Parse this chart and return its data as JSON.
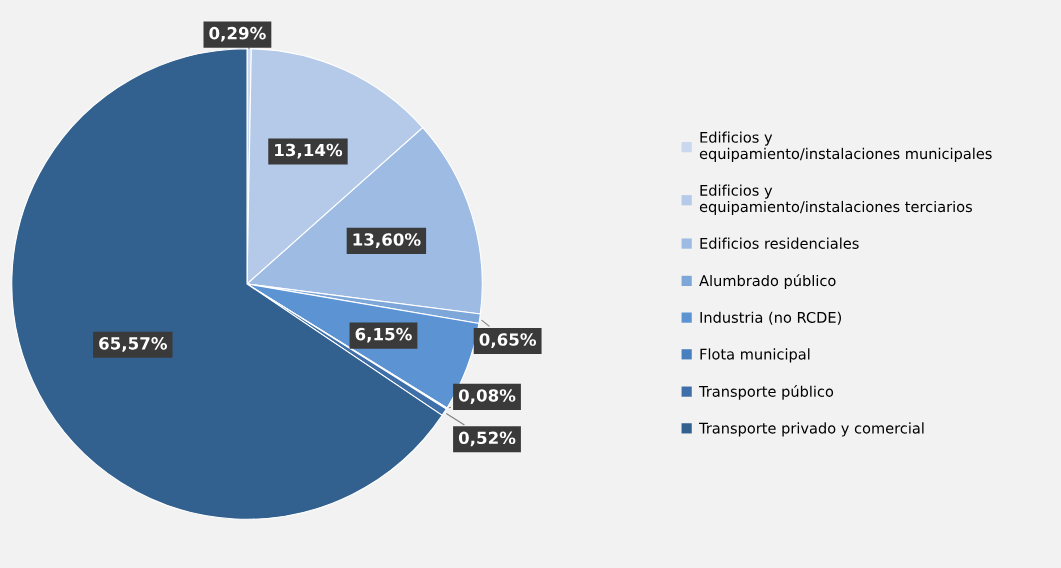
{
  "chart_data": {
    "type": "pie",
    "categories": [
      "Edificios y equipamiento/instalaciones municipales",
      "Edificios y equipamiento/instalaciones terciarios",
      "Edificios residenciales",
      "Alumbrado público",
      "Industria (no RCDE)",
      "Flota municipal",
      "Transporte público",
      "Transporte privado y comercial"
    ],
    "values": [
      0.29,
      13.14,
      13.6,
      0.65,
      6.15,
      0.08,
      0.52,
      65.57
    ],
    "value_labels": [
      "0,29%",
      "13,14%",
      "13,60%",
      "0,65%",
      "6,15%",
      "0,08%",
      "0,52%",
      "65,57%"
    ],
    "colors": [
      "#c9d8ee",
      "#b4cae8",
      "#9dbbe3",
      "#7ea7d9",
      "#5b93d3",
      "#4a7fbf",
      "#3f6fa8",
      "#32608f"
    ],
    "legend": "right"
  }
}
